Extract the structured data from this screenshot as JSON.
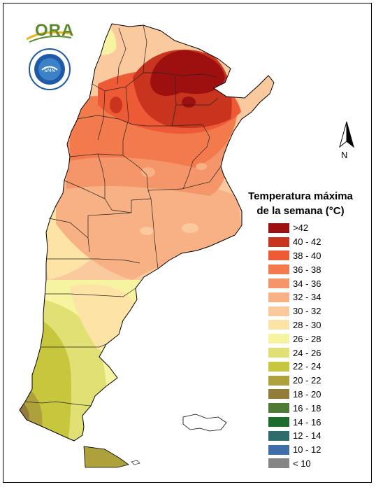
{
  "logo": {
    "text": "ORA",
    "seal_lettering": "SERVICIO METEOROLÓGICO NACIONAL ARGENTINA SMN"
  },
  "legend": {
    "title_line1": "Temperatura máxima",
    "title_line2": "de la semana (°C)",
    "items": [
      {
        "label": ">42",
        "color": "#9e1010"
      },
      {
        "label": "40 - 42",
        "color": "#c8341e"
      },
      {
        "label": "38 - 40",
        "color": "#ee5a36"
      },
      {
        "label": "36 - 38",
        "color": "#f27a4c"
      },
      {
        "label": "34 - 36",
        "color": "#f5966a"
      },
      {
        "label": "32 - 34",
        "color": "#f8b184"
      },
      {
        "label": "30 - 32",
        "color": "#fbc99e"
      },
      {
        "label": "28 - 30",
        "color": "#fde3a6"
      },
      {
        "label": "26 - 28",
        "color": "#f6f4a0"
      },
      {
        "label": "24 - 26",
        "color": "#e0e074"
      },
      {
        "label": "22 - 24",
        "color": "#c8c63c"
      },
      {
        "label": "20 - 22",
        "color": "#aea03a"
      },
      {
        "label": "18 - 20",
        "color": "#937c3a"
      },
      {
        "label": "16 - 18",
        "color": "#4e7a35"
      },
      {
        "label": "14 - 16",
        "color": "#1e6b2e"
      },
      {
        "label": "12 - 14",
        "color": "#2f6b6b"
      },
      {
        "label": "10 - 12",
        "color": "#3e6da8"
      },
      {
        "label": "< 10",
        "color": "#858585"
      }
    ]
  },
  "compass": {
    "label": "N"
  }
}
